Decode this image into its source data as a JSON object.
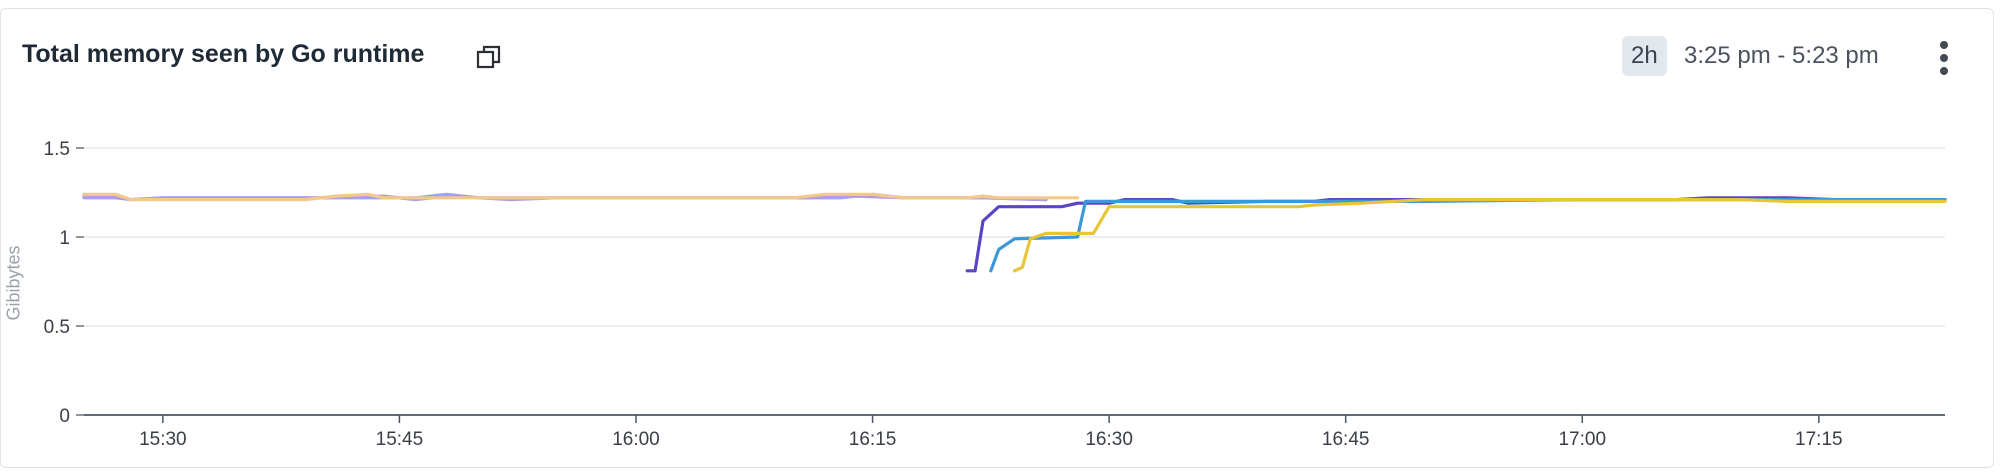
{
  "panel": {
    "title": "Total memory seen by Go runtime",
    "range_badge": "2h",
    "time_range": "3:25 pm - 5:23 pm",
    "copy_icon": "copy-icon",
    "menu_icon": "more-vertical-icon"
  },
  "chart_data": {
    "type": "line",
    "title": "Total memory seen by Go runtime",
    "ylabel": "Gibibytes",
    "xlabel": "",
    "ylim": [
      0,
      1.5
    ],
    "yticks": [
      "0",
      "0.5",
      "1",
      "1.5"
    ],
    "xlim": [
      "15:25",
      "17:23"
    ],
    "xticks": [
      "15:30",
      "15:45",
      "16:00",
      "16:15",
      "16:30",
      "16:45",
      "17:00",
      "17:15"
    ],
    "grid": true,
    "legend": "none",
    "series": [
      {
        "color": "#8fa8f0",
        "points": [
          [
            "15:25",
            1.23
          ],
          [
            "15:27",
            1.23
          ],
          [
            "15:28",
            1.21
          ],
          [
            "15:30",
            1.22
          ],
          [
            "15:40",
            1.22
          ],
          [
            "15:44",
            1.22
          ],
          [
            "15:46",
            1.22
          ],
          [
            "15:48",
            1.24
          ],
          [
            "15:50",
            1.22
          ],
          [
            "16:00",
            1.22
          ],
          [
            "16:10",
            1.22
          ],
          [
            "16:13",
            1.22
          ],
          [
            "16:15",
            1.24
          ],
          [
            "16:17",
            1.22
          ],
          [
            "16:22",
            1.22
          ],
          [
            "16:26",
            1.21
          ]
        ]
      },
      {
        "color": "#b49be8",
        "points": [
          [
            "15:25",
            1.22
          ],
          [
            "15:27",
            1.22
          ],
          [
            "15:28",
            1.21
          ],
          [
            "15:30",
            1.22
          ],
          [
            "15:40",
            1.22
          ],
          [
            "15:44",
            1.23
          ],
          [
            "15:46",
            1.21
          ],
          [
            "15:48",
            1.23
          ],
          [
            "15:49",
            1.23
          ],
          [
            "15:50",
            1.22
          ],
          [
            "15:52",
            1.21
          ],
          [
            "15:55",
            1.22
          ],
          [
            "16:00",
            1.22
          ],
          [
            "16:11",
            1.22
          ],
          [
            "16:14",
            1.23
          ],
          [
            "16:17",
            1.22
          ],
          [
            "16:22",
            1.22
          ],
          [
            "16:26",
            1.21
          ]
        ]
      },
      {
        "color": "#f3c98a",
        "points": [
          [
            "15:25",
            1.24
          ],
          [
            "15:27",
            1.24
          ],
          [
            "15:28",
            1.21
          ],
          [
            "15:30",
            1.21
          ],
          [
            "15:39",
            1.21
          ],
          [
            "15:41",
            1.23
          ],
          [
            "15:43",
            1.24
          ],
          [
            "15:44",
            1.22
          ],
          [
            "15:50",
            1.22
          ],
          [
            "15:55",
            1.22
          ],
          [
            "16:00",
            1.22
          ],
          [
            "16:10",
            1.22
          ],
          [
            "16:12",
            1.24
          ],
          [
            "16:15",
            1.24
          ],
          [
            "16:17",
            1.22
          ],
          [
            "16:21",
            1.22
          ],
          [
            "16:22",
            1.23
          ],
          [
            "16:23",
            1.22
          ],
          [
            "16:28",
            1.22
          ]
        ]
      },
      {
        "color": "#5b45c4",
        "points": [
          [
            "16:21",
            0.81
          ],
          [
            "16:21.5",
            0.81
          ],
          [
            "16:22",
            1.09
          ],
          [
            "16:23",
            1.17
          ],
          [
            "16:27",
            1.17
          ],
          [
            "16:28",
            1.19
          ],
          [
            "16:30",
            1.19
          ],
          [
            "16:31",
            1.21
          ],
          [
            "16:34",
            1.21
          ],
          [
            "16:35",
            1.19
          ],
          [
            "16:40",
            1.2
          ],
          [
            "16:43",
            1.2
          ],
          [
            "16:44",
            1.21
          ],
          [
            "16:50",
            1.21
          ],
          [
            "17:00",
            1.21
          ],
          [
            "17:06",
            1.21
          ],
          [
            "17:08",
            1.22
          ],
          [
            "17:10",
            1.22
          ],
          [
            "17:13",
            1.22
          ],
          [
            "17:16",
            1.21
          ],
          [
            "17:21",
            1.21
          ],
          [
            "17:23",
            1.21
          ]
        ]
      },
      {
        "color": "#3c98d8",
        "points": [
          [
            "16:22.5",
            0.81
          ],
          [
            "16:23",
            0.93
          ],
          [
            "16:24",
            0.99
          ],
          [
            "16:28",
            1.0
          ],
          [
            "16:28.5",
            1.2
          ],
          [
            "16:40",
            1.2
          ],
          [
            "16:50",
            1.2
          ],
          [
            "17:00",
            1.21
          ],
          [
            "17:10",
            1.21
          ],
          [
            "17:20",
            1.21
          ],
          [
            "17:23",
            1.21
          ]
        ]
      },
      {
        "color": "#e8c535",
        "points": [
          [
            "16:24",
            0.81
          ],
          [
            "16:24.5",
            0.83
          ],
          [
            "16:25",
            0.99
          ],
          [
            "16:26",
            1.02
          ],
          [
            "16:29",
            1.02
          ],
          [
            "16:30",
            1.17
          ],
          [
            "16:42",
            1.17
          ],
          [
            "16:43",
            1.18
          ],
          [
            "16:46",
            1.19
          ],
          [
            "16:50",
            1.21
          ],
          [
            "17:00",
            1.21
          ],
          [
            "17:10",
            1.21
          ],
          [
            "17:13",
            1.2
          ],
          [
            "17:15",
            1.2
          ],
          [
            "17:20",
            1.2
          ],
          [
            "17:23",
            1.2
          ]
        ]
      }
    ]
  }
}
